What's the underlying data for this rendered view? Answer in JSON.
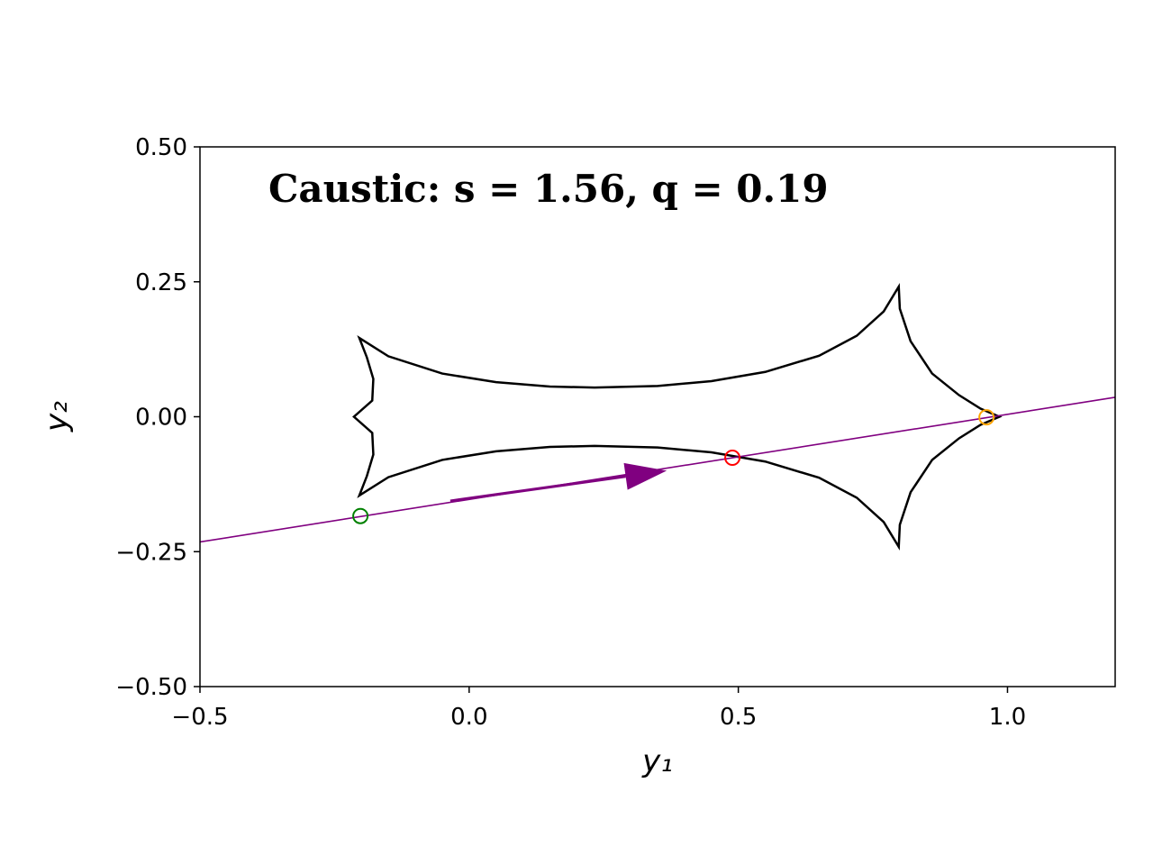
{
  "chart_data": {
    "type": "line",
    "title": "Caustic: s = 1.56, q = 0.19",
    "xlabel": "y₁",
    "ylabel": "y₂",
    "xlim": [
      -0.5,
      1.2
    ],
    "ylim": [
      -0.5,
      0.5
    ],
    "xticks": [
      {
        "value": -0.5,
        "label": "−0.5"
      },
      {
        "value": 0,
        "label": "0.0"
      },
      {
        "value": 0.5,
        "label": "0.5"
      },
      {
        "value": 1.0,
        "label": "1.0"
      }
    ],
    "yticks": [
      {
        "value": -0.5,
        "label": "−0.50"
      },
      {
        "value": -0.25,
        "label": "−0.25"
      },
      {
        "value": 0,
        "label": "0.00"
      },
      {
        "value": 0.25,
        "label": "0.25"
      },
      {
        "value": 0.5,
        "label": "0.50"
      }
    ],
    "grid": false,
    "series": [
      {
        "color": "#000000",
        "closed": true,
        "style": "line",
        "x": [
          -0.204,
          -0.15,
          -0.05,
          0.05,
          0.15,
          0.233,
          0.35,
          0.45,
          0.55,
          0.65,
          0.72,
          0.77,
          0.798,
          0.8,
          0.82,
          0.86,
          0.91,
          0.95,
          0.985,
          0.95,
          0.91,
          0.86,
          0.82,
          0.8,
          0.798,
          0.77,
          0.72,
          0.65,
          0.55,
          0.45,
          0.35,
          0.233,
          0.15,
          0.05,
          -0.05,
          -0.15,
          -0.204,
          -0.19,
          -0.178,
          -0.18,
          -0.214,
          -0.18,
          -0.178,
          -0.19
        ],
        "values": [
          0.146,
          0.112,
          0.08,
          0.064,
          0.056,
          0.054,
          0.057,
          0.066,
          0.083,
          0.113,
          0.15,
          0.195,
          0.241,
          0.2,
          0.14,
          0.08,
          0.04,
          0.015,
          0,
          -0.015,
          -0.04,
          -0.08,
          -0.14,
          -0.2,
          -0.241,
          -0.195,
          -0.15,
          -0.113,
          -0.083,
          -0.066,
          -0.057,
          -0.054,
          -0.056,
          -0.064,
          -0.08,
          -0.112,
          -0.146,
          -0.11,
          -0.07,
          -0.03,
          0,
          0.03,
          0.07,
          0.11
        ]
      },
      {
        "color": "#800080",
        "style": "line",
        "x": [
          -0.5,
          1.2
        ],
        "values": [
          -0.232,
          0.036
        ]
      },
      {
        "color": "#008000",
        "style": "marker",
        "x": [
          -0.202
        ],
        "values": [
          -0.184
        ]
      },
      {
        "color": "#ff0000",
        "style": "marker",
        "x": [
          0.489
        ],
        "values": [
          -0.076
        ]
      },
      {
        "color": "#ffa500",
        "style": "marker",
        "x": [
          0.961
        ],
        "values": [
          -0.001
        ]
      }
    ],
    "arrow": {
      "color": "#800080",
      "x": [
        -0.035,
        0.367
      ],
      "y": [
        -0.156,
        -0.1
      ]
    }
  }
}
